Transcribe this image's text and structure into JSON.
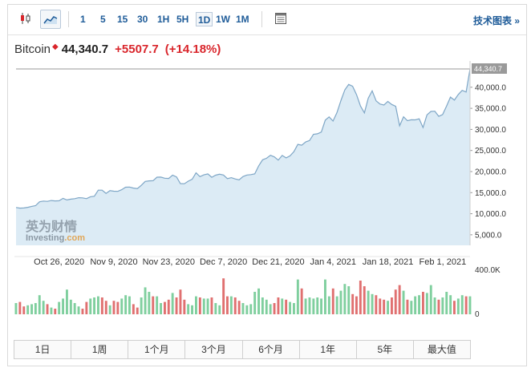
{
  "toolbar": {
    "icons": [
      "candlestick-icon",
      "area-chart-icon",
      "settings-table-icon"
    ],
    "periods": [
      "1",
      "5",
      "15",
      "30",
      "1H",
      "5H",
      "1D",
      "1W",
      "1M"
    ],
    "active_period": "1D",
    "tech_link": "技术图表 »"
  },
  "quote": {
    "name": "Bitcoin",
    "price": "44,340.7",
    "change": "+5507.7",
    "change_pct": "(+14.18%)"
  },
  "watermark": {
    "brand_cn": "英为财情",
    "brand_en": "Investing",
    "domain": ".com"
  },
  "colors": {
    "up": "#d9262c",
    "down_bar": "#e07070",
    "up_bar": "#7fcf9e",
    "line": "#7ea6c6",
    "fill": "#dcebf5",
    "link": "#1f5c99"
  },
  "chart_data": {
    "type": "area",
    "last_value_label": "44,340.7",
    "x_tick_labels": [
      "Oct 26, 2020",
      "Nov 9, 2020",
      "Nov 23, 2020",
      "Dec 7, 2020",
      "Dec 21, 2020",
      "Jan 4, 2021",
      "Jan 18, 2021",
      "Feb 1, 2021"
    ],
    "y_tick_labels": [
      "40,000.0",
      "35,000.0",
      "30,000.0",
      "25,000.0",
      "20,000.0",
      "15,000.0",
      "10,000.0",
      "5,000.0"
    ],
    "y_ticks": [
      40000,
      35000,
      30000,
      25000,
      20000,
      15000,
      10000,
      5000
    ],
    "ylim": [
      2500,
      44340.7
    ],
    "x_start": "2020-10-15",
    "price_series": [
      [
        "2020-10-15",
        11480
      ],
      [
        "2020-10-16",
        11320
      ],
      [
        "2020-10-17",
        11370
      ],
      [
        "2020-10-18",
        11510
      ],
      [
        "2020-10-19",
        11750
      ],
      [
        "2020-10-20",
        11910
      ],
      [
        "2020-10-21",
        12820
      ],
      [
        "2020-10-22",
        12990
      ],
      [
        "2020-10-23",
        12930
      ],
      [
        "2020-10-24",
        13130
      ],
      [
        "2020-10-25",
        13040
      ],
      [
        "2020-10-26",
        13070
      ],
      [
        "2020-10-27",
        13640
      ],
      [
        "2020-10-28",
        13270
      ],
      [
        "2020-10-29",
        13450
      ],
      [
        "2020-10-30",
        13560
      ],
      [
        "2020-10-31",
        13800
      ],
      [
        "2020-11-01",
        13750
      ],
      [
        "2020-11-02",
        13560
      ],
      [
        "2020-11-03",
        14020
      ],
      [
        "2020-11-04",
        14140
      ],
      [
        "2020-11-05",
        15590
      ],
      [
        "2020-11-06",
        15580
      ],
      [
        "2020-11-07",
        14830
      ],
      [
        "2020-11-08",
        15480
      ],
      [
        "2020-11-09",
        15330
      ],
      [
        "2020-11-10",
        15300
      ],
      [
        "2020-11-11",
        15700
      ],
      [
        "2020-11-12",
        16290
      ],
      [
        "2020-11-13",
        16330
      ],
      [
        "2020-11-14",
        16070
      ],
      [
        "2020-11-15",
        15960
      ],
      [
        "2020-11-16",
        16720
      ],
      [
        "2020-11-17",
        17660
      ],
      [
        "2020-11-18",
        17800
      ],
      [
        "2020-11-19",
        17820
      ],
      [
        "2020-11-20",
        18660
      ],
      [
        "2020-11-21",
        18690
      ],
      [
        "2020-11-22",
        18420
      ],
      [
        "2020-11-23",
        18370
      ],
      [
        "2020-11-24",
        19160
      ],
      [
        "2020-11-25",
        18730
      ],
      [
        "2020-11-26",
        17150
      ],
      [
        "2020-11-27",
        17110
      ],
      [
        "2020-11-28",
        17720
      ],
      [
        "2020-11-29",
        18180
      ],
      [
        "2020-11-30",
        19700
      ],
      [
        "2020-12-01",
        18800
      ],
      [
        "2020-12-02",
        19220
      ],
      [
        "2020-12-03",
        19450
      ],
      [
        "2020-12-04",
        18650
      ],
      [
        "2020-12-05",
        19150
      ],
      [
        "2020-12-06",
        19360
      ],
      [
        "2020-12-07",
        19180
      ],
      [
        "2020-12-08",
        18320
      ],
      [
        "2020-12-09",
        18550
      ],
      [
        "2020-12-10",
        18240
      ],
      [
        "2020-12-11",
        18040
      ],
      [
        "2020-12-12",
        18810
      ],
      [
        "2020-12-13",
        19170
      ],
      [
        "2020-12-14",
        19270
      ],
      [
        "2020-12-15",
        19440
      ],
      [
        "2020-12-16",
        21350
      ],
      [
        "2020-12-17",
        22800
      ],
      [
        "2020-12-18",
        23150
      ],
      [
        "2020-12-19",
        23850
      ],
      [
        "2020-12-20",
        23470
      ],
      [
        "2020-12-21",
        22720
      ],
      [
        "2020-12-22",
        23820
      ],
      [
        "2020-12-23",
        23240
      ],
      [
        "2020-12-24",
        23730
      ],
      [
        "2020-12-25",
        24710
      ],
      [
        "2020-12-26",
        26440
      ],
      [
        "2020-12-27",
        26250
      ],
      [
        "2020-12-28",
        27040
      ],
      [
        "2020-12-29",
        27360
      ],
      [
        "2020-12-30",
        28840
      ],
      [
        "2020-12-31",
        28950
      ],
      [
        "2021-01-01",
        29370
      ],
      [
        "2021-01-02",
        32190
      ],
      [
        "2021-01-03",
        32960
      ],
      [
        "2021-01-04",
        31970
      ],
      [
        "2021-01-05",
        33990
      ],
      [
        "2021-01-06",
        36820
      ],
      [
        "2021-01-07",
        39370
      ],
      [
        "2021-01-08",
        40670
      ],
      [
        "2021-01-09",
        40240
      ],
      [
        "2021-01-10",
        38240
      ],
      [
        "2021-01-11",
        35560
      ],
      [
        "2021-01-12",
        33910
      ],
      [
        "2021-01-13",
        37390
      ],
      [
        "2021-01-14",
        39150
      ],
      [
        "2021-01-15",
        36770
      ],
      [
        "2021-01-16",
        36010
      ],
      [
        "2021-01-17",
        35790
      ],
      [
        "2021-01-18",
        36630
      ],
      [
        "2021-01-19",
        35910
      ],
      [
        "2021-01-20",
        35470
      ],
      [
        "2021-01-21",
        30850
      ],
      [
        "2021-01-22",
        32990
      ],
      [
        "2021-01-23",
        32080
      ],
      [
        "2021-01-24",
        32280
      ],
      [
        "2021-01-25",
        32270
      ],
      [
        "2021-01-26",
        32510
      ],
      [
        "2021-01-27",
        30430
      ],
      [
        "2021-01-28",
        33440
      ],
      [
        "2021-01-29",
        34270
      ],
      [
        "2021-01-30",
        34320
      ],
      [
        "2021-01-31",
        33110
      ],
      [
        "2021-02-01",
        33520
      ],
      [
        "2021-02-02",
        35510
      ],
      [
        "2021-02-03",
        37670
      ],
      [
        "2021-02-04",
        36940
      ],
      [
        "2021-02-05",
        38290
      ],
      [
        "2021-02-06",
        39270
      ],
      [
        "2021-02-07",
        38870
      ],
      [
        "2021-02-08",
        44340.7
      ]
    ],
    "volume_axis_labels": [
      "400.0K",
      "0"
    ],
    "volume_max": 400000,
    "volume_series": [
      [
        "2020-10-15",
        100000,
        "up"
      ],
      [
        "2020-10-16",
        110000,
        "down"
      ],
      [
        "2020-10-17",
        70000,
        "down"
      ],
      [
        "2020-10-18",
        80000,
        "up"
      ],
      [
        "2020-10-19",
        90000,
        "up"
      ],
      [
        "2020-10-20",
        100000,
        "up"
      ],
      [
        "2020-10-21",
        170000,
        "up"
      ],
      [
        "2020-10-22",
        120000,
        "up"
      ],
      [
        "2020-10-23",
        90000,
        "down"
      ],
      [
        "2020-10-24",
        60000,
        "up"
      ],
      [
        "2020-10-25",
        50000,
        "down"
      ],
      [
        "2020-10-26",
        110000,
        "up"
      ],
      [
        "2020-10-27",
        140000,
        "up"
      ],
      [
        "2020-10-28",
        220000,
        "up"
      ],
      [
        "2020-10-29",
        130000,
        "up"
      ],
      [
        "2020-10-30",
        100000,
        "up"
      ],
      [
        "2020-10-31",
        70000,
        "up"
      ],
      [
        "2020-11-01",
        50000,
        "down"
      ],
      [
        "2020-11-02",
        110000,
        "down"
      ],
      [
        "2020-11-03",
        140000,
        "up"
      ],
      [
        "2020-11-04",
        150000,
        "up"
      ],
      [
        "2020-11-05",
        160000,
        "up"
      ],
      [
        "2020-11-06",
        150000,
        "down"
      ],
      [
        "2020-11-07",
        120000,
        "down"
      ],
      [
        "2020-11-08",
        80000,
        "up"
      ],
      [
        "2020-11-09",
        120000,
        "down"
      ],
      [
        "2020-11-10",
        110000,
        "down"
      ],
      [
        "2020-11-11",
        140000,
        "up"
      ],
      [
        "2020-11-12",
        170000,
        "up"
      ],
      [
        "2020-11-13",
        160000,
        "up"
      ],
      [
        "2020-11-14",
        90000,
        "down"
      ],
      [
        "2020-11-15",
        60000,
        "down"
      ],
      [
        "2020-11-16",
        150000,
        "up"
      ],
      [
        "2020-11-17",
        240000,
        "up"
      ],
      [
        "2020-11-18",
        200000,
        "up"
      ],
      [
        "2020-11-19",
        160000,
        "down"
      ],
      [
        "2020-11-20",
        160000,
        "up"
      ],
      [
        "2020-11-21",
        100000,
        "up"
      ],
      [
        "2020-11-22",
        110000,
        "down"
      ],
      [
        "2020-11-23",
        130000,
        "down"
      ],
      [
        "2020-11-24",
        190000,
        "up"
      ],
      [
        "2020-11-25",
        150000,
        "down"
      ],
      [
        "2020-11-26",
        220000,
        "down"
      ],
      [
        "2020-11-27",
        130000,
        "down"
      ],
      [
        "2020-11-28",
        90000,
        "up"
      ],
      [
        "2020-11-29",
        80000,
        "up"
      ],
      [
        "2020-11-30",
        160000,
        "up"
      ],
      [
        "2020-12-01",
        150000,
        "down"
      ],
      [
        "2020-12-02",
        140000,
        "up"
      ],
      [
        "2020-12-03",
        140000,
        "up"
      ],
      [
        "2020-12-04",
        150000,
        "down"
      ],
      [
        "2020-12-05",
        100000,
        "up"
      ],
      [
        "2020-12-06",
        80000,
        "up"
      ],
      [
        "2020-12-07",
        320000,
        "down"
      ],
      [
        "2020-12-08",
        160000,
        "down"
      ],
      [
        "2020-12-09",
        160000,
        "up"
      ],
      [
        "2020-12-10",
        150000,
        "down"
      ],
      [
        "2020-12-11",
        120000,
        "down"
      ],
      [
        "2020-12-12",
        100000,
        "up"
      ],
      [
        "2020-12-13",
        80000,
        "up"
      ],
      [
        "2020-12-14",
        90000,
        "up"
      ],
      [
        "2020-12-15",
        200000,
        "up"
      ],
      [
        "2020-12-16",
        230000,
        "up"
      ],
      [
        "2020-12-17",
        150000,
        "up"
      ],
      [
        "2020-12-18",
        130000,
        "up"
      ],
      [
        "2020-12-19",
        90000,
        "up"
      ],
      [
        "2020-12-20",
        100000,
        "down"
      ],
      [
        "2020-12-21",
        150000,
        "down"
      ],
      [
        "2020-12-22",
        140000,
        "up"
      ],
      [
        "2020-12-23",
        130000,
        "down"
      ],
      [
        "2020-12-24",
        110000,
        "up"
      ],
      [
        "2020-12-25",
        100000,
        "up"
      ],
      [
        "2020-12-26",
        310000,
        "up"
      ],
      [
        "2020-12-27",
        230000,
        "down"
      ],
      [
        "2020-12-28",
        140000,
        "up"
      ],
      [
        "2020-12-29",
        150000,
        "up"
      ],
      [
        "2020-12-30",
        140000,
        "up"
      ],
      [
        "2020-12-31",
        150000,
        "up"
      ],
      [
        "2021-01-01",
        140000,
        "up"
      ],
      [
        "2021-01-02",
        310000,
        "up"
      ],
      [
        "2021-01-03",
        160000,
        "up"
      ],
      [
        "2021-01-04",
        230000,
        "down"
      ],
      [
        "2021-01-05",
        160000,
        "up"
      ],
      [
        "2021-01-06",
        210000,
        "up"
      ],
      [
        "2021-01-07",
        270000,
        "up"
      ],
      [
        "2021-01-08",
        250000,
        "up"
      ],
      [
        "2021-01-09",
        180000,
        "down"
      ],
      [
        "2021-01-10",
        160000,
        "down"
      ],
      [
        "2021-01-11",
        300000,
        "down"
      ],
      [
        "2021-01-12",
        250000,
        "down"
      ],
      [
        "2021-01-13",
        210000,
        "up"
      ],
      [
        "2021-01-14",
        180000,
        "up"
      ],
      [
        "2021-01-15",
        170000,
        "down"
      ],
      [
        "2021-01-16",
        140000,
        "down"
      ],
      [
        "2021-01-17",
        130000,
        "down"
      ],
      [
        "2021-01-18",
        120000,
        "up"
      ],
      [
        "2021-01-19",
        150000,
        "down"
      ],
      [
        "2021-01-20",
        220000,
        "down"
      ],
      [
        "2021-01-21",
        260000,
        "down"
      ],
      [
        "2021-01-22",
        210000,
        "up"
      ],
      [
        "2021-01-23",
        130000,
        "down"
      ],
      [
        "2021-01-24",
        120000,
        "up"
      ],
      [
        "2021-01-25",
        160000,
        "up"
      ],
      [
        "2021-01-26",
        170000,
        "up"
      ],
      [
        "2021-01-27",
        200000,
        "down"
      ],
      [
        "2021-01-28",
        190000,
        "up"
      ],
      [
        "2021-01-29",
        260000,
        "up"
      ],
      [
        "2021-01-30",
        150000,
        "up"
      ],
      [
        "2021-01-31",
        130000,
        "down"
      ],
      [
        "2021-02-01",
        150000,
        "up"
      ],
      [
        "2021-02-02",
        200000,
        "up"
      ],
      [
        "2021-02-03",
        170000,
        "up"
      ],
      [
        "2021-02-04",
        120000,
        "down"
      ],
      [
        "2021-02-05",
        140000,
        "up"
      ],
      [
        "2021-02-06",
        170000,
        "up"
      ],
      [
        "2021-02-07",
        160000,
        "down"
      ],
      [
        "2021-02-08",
        160000,
        "up"
      ]
    ]
  },
  "range_buttons": [
    "1日",
    "1周",
    "1个月",
    "3个月",
    "6个月",
    "1年",
    "5年",
    "最大值"
  ]
}
